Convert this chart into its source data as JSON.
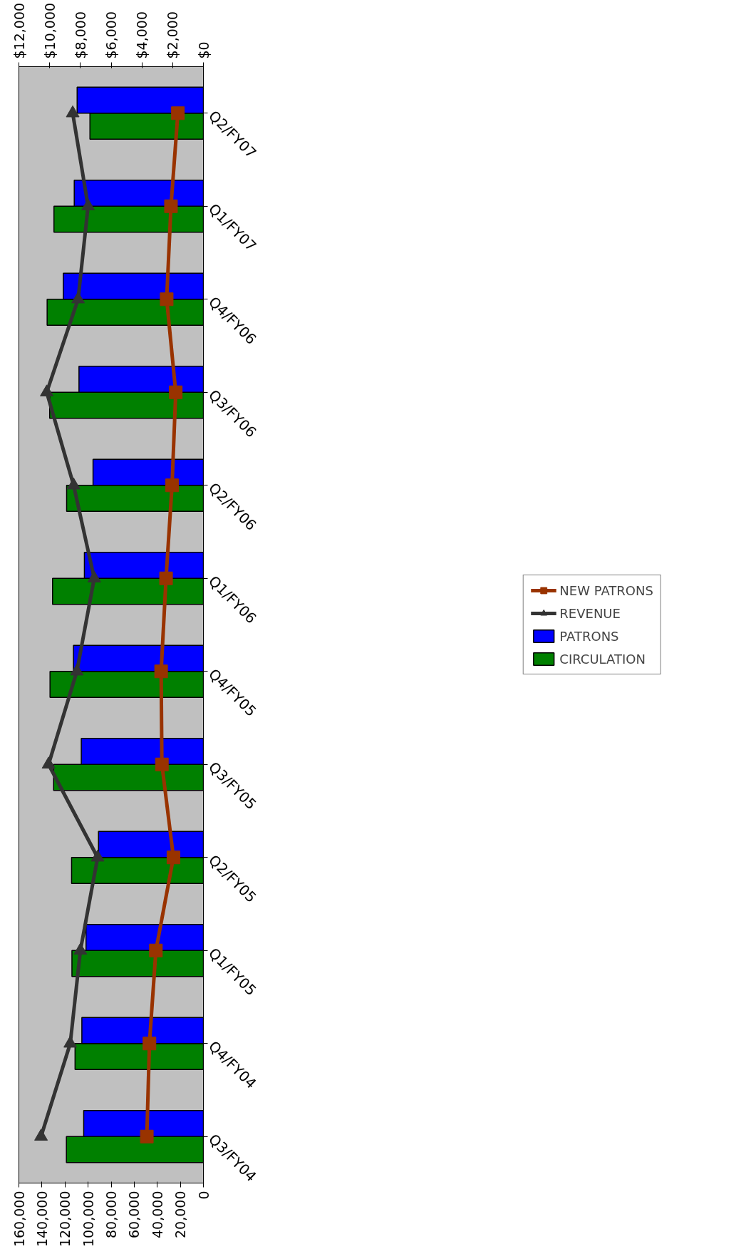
{
  "chart_data": {
    "type": "bar",
    "orientation": "horizontal",
    "categories": [
      "Q2/FY07",
      "Q1/FY07",
      "Q4/FY06",
      "Q3/FY06",
      "Q2/FY06",
      "Q1/FY06",
      "Q4/FY05",
      "Q3/FY05",
      "Q2/FY05",
      "Q1/FY05",
      "Q4/FY04",
      "Q3/FY04"
    ],
    "series": [
      {
        "name": "CIRCULATION",
        "color": "#008000",
        "values": [
          98400,
          129600,
          135500,
          133300,
          118600,
          130800,
          133000,
          129900,
          114300,
          114000,
          111300,
          118800
        ]
      },
      {
        "name": "PATRONS",
        "color": "#0000ff",
        "values": [
          109500,
          112000,
          121500,
          107900,
          95700,
          103200,
          112700,
          105900,
          91000,
          101800,
          105400,
          103800
        ]
      },
      {
        "name": "REVENUE",
        "type": "line",
        "axis": "x2",
        "color": "#333333",
        "marker": "triangle",
        "values": [
          8500,
          7500,
          8150,
          10190,
          8440,
          7100,
          8230,
          10070,
          6880,
          8000,
          8660,
          10560
        ]
      },
      {
        "name": "NEW PATRONS",
        "type": "line",
        "axis": "x2",
        "color": "#993300",
        "marker": "square",
        "values": [
          1660,
          2110,
          2390,
          1800,
          2040,
          2430,
          2750,
          2700,
          1950,
          3090,
          3510,
          3680
        ]
      }
    ],
    "xlim": [
      160000,
      0
    ],
    "xticks": [
      0,
      {
        "value": 20000,
        "label": "20,000"
      },
      {
        "value": 40000,
        "label": "40,000"
      },
      {
        "value": 60000,
        "label": "60,000"
      },
      {
        "value": 80000,
        "label": "80,000"
      },
      {
        "value": 100000,
        "label": "100,000"
      },
      {
        "value": 120000,
        "label": "120,000"
      },
      {
        "value": 140000,
        "label": "140,000"
      },
      {
        "value": 160000,
        "label": "160,000"
      }
    ],
    "x2lim": [
      12000,
      0
    ],
    "x2ticks": [
      {
        "value": 0,
        "label": "$0"
      },
      {
        "value": 2000,
        "label": "$2,000"
      },
      {
        "value": 4000,
        "label": "$4,000"
      },
      {
        "value": 6000,
        "label": "$6,000"
      },
      {
        "value": 8000,
        "label": "$8,000"
      },
      {
        "value": 10000,
        "label": "$10,000"
      },
      {
        "value": 12000,
        "label": "$12,000"
      }
    ],
    "legend": "right",
    "grid": false
  }
}
